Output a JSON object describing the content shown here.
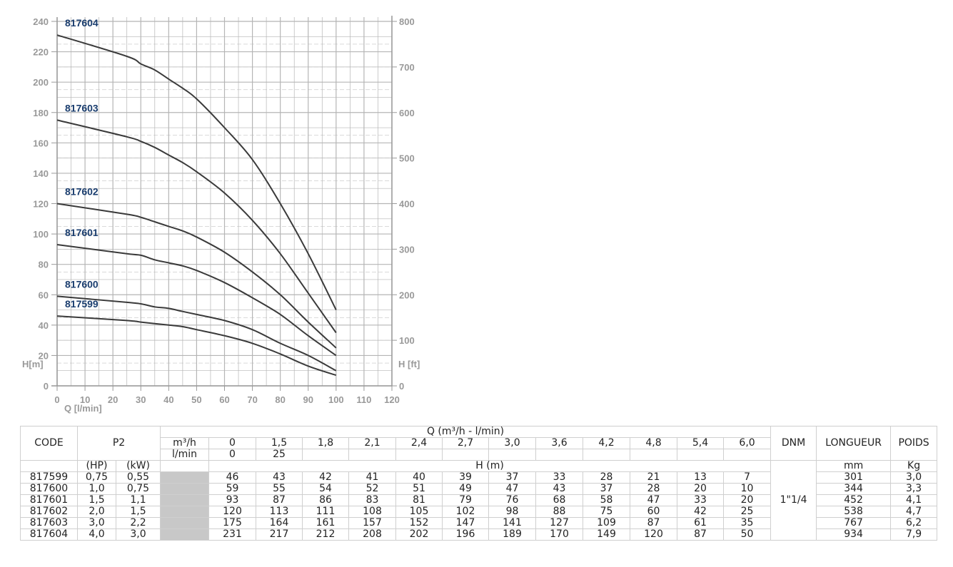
{
  "chart_data": {
    "type": "line",
    "xlabel": "Q [l/min]",
    "ylabel": "H[m]",
    "y2label": "H [ft]",
    "xlim": [
      0,
      120
    ],
    "ylim": [
      0,
      240
    ],
    "y2lim": [
      0,
      800
    ],
    "xticks": [
      "0",
      "10",
      "20",
      "30",
      "40",
      "50",
      "60",
      "70",
      "80",
      "90",
      "100",
      "110",
      "120"
    ],
    "yticks": [
      "0",
      "20",
      "40",
      "60",
      "80",
      "100",
      "120",
      "140",
      "160",
      "180",
      "200",
      "220",
      "240"
    ],
    "y2ticks": [
      "0",
      "100",
      "200",
      "300",
      "400",
      "500",
      "600",
      "700",
      "800"
    ],
    "grid": true,
    "x": [
      0,
      25,
      30,
      35,
      40,
      45,
      50,
      60,
      70,
      80,
      90,
      100
    ],
    "series": [
      {
        "name": "817599",
        "values": [
          46,
          43,
          42,
          41,
          40,
          39,
          37,
          33,
          28,
          21,
          13,
          7
        ]
      },
      {
        "name": "817600",
        "values": [
          59,
          55,
          54,
          52,
          51,
          49,
          47,
          43,
          37,
          28,
          20,
          10
        ]
      },
      {
        "name": "817601",
        "values": [
          93,
          87,
          86,
          83,
          81,
          79,
          76,
          68,
          58,
          47,
          33,
          20
        ]
      },
      {
        "name": "817602",
        "values": [
          120,
          113,
          111,
          108,
          105,
          102,
          98,
          88,
          75,
          60,
          42,
          25
        ]
      },
      {
        "name": "817603",
        "values": [
          175,
          164,
          161,
          157,
          152,
          147,
          141,
          127,
          109,
          87,
          61,
          35
        ]
      },
      {
        "name": "817604",
        "values": [
          231,
          217,
          212,
          208,
          202,
          196,
          189,
          170,
          149,
          120,
          87,
          50
        ]
      }
    ],
    "colors": {
      "curve": "#3a3a3a",
      "label": "#1a3d6e",
      "grid": "#b5b5b5",
      "axis": "#999999"
    }
  },
  "table": {
    "code_header": "CODE",
    "p2_header": "P2",
    "q_header": "Q (m³/h - l/min)",
    "unit_m3h": "m³/h",
    "unit_lmin": "l/min",
    "m3h": [
      "0",
      "1,5",
      "1,8",
      "2,1",
      "2,4",
      "2,7",
      "3,0",
      "3,6",
      "4,2",
      "4,8",
      "5,4",
      "6,0"
    ],
    "lmin": [
      "0",
      "25",
      "",
      "",
      "",
      "",
      "",
      "",
      "",
      "",
      "",
      ""
    ],
    "hp_header": "(HP)",
    "kw_header": "(kW)",
    "h_header": "H (m)",
    "dnm_header": "DNM",
    "dnm_value": "1\"1/4",
    "longueur_header": "LONGUEUR",
    "longueur_unit": "mm",
    "poids_header": "POIDS",
    "poids_unit": "Kg",
    "rows": [
      {
        "code": "817599",
        "hp": "0,75",
        "kw": "0,55",
        "h": [
          "46",
          "43",
          "42",
          "41",
          "40",
          "39",
          "37",
          "33",
          "28",
          "21",
          "13",
          "7"
        ],
        "longueur": "301",
        "poids": "3,0"
      },
      {
        "code": "817600",
        "hp": "1,0",
        "kw": "0,75",
        "h": [
          "59",
          "55",
          "54",
          "52",
          "51",
          "49",
          "47",
          "43",
          "37",
          "28",
          "20",
          "10"
        ],
        "longueur": "344",
        "poids": "3,3"
      },
      {
        "code": "817601",
        "hp": "1,5",
        "kw": "1,1",
        "h": [
          "93",
          "87",
          "86",
          "83",
          "81",
          "79",
          "76",
          "68",
          "58",
          "47",
          "33",
          "20"
        ],
        "longueur": "452",
        "poids": "4,1"
      },
      {
        "code": "817602",
        "hp": "2,0",
        "kw": "1,5",
        "h": [
          "120",
          "113",
          "111",
          "108",
          "105",
          "102",
          "98",
          "88",
          "75",
          "60",
          "42",
          "25"
        ],
        "longueur": "538",
        "poids": "4,7"
      },
      {
        "code": "817603",
        "hp": "3,0",
        "kw": "2,2",
        "h": [
          "175",
          "164",
          "161",
          "157",
          "152",
          "147",
          "141",
          "127",
          "109",
          "87",
          "61",
          "35"
        ],
        "longueur": "767",
        "poids": "6,2"
      },
      {
        "code": "817604",
        "hp": "4,0",
        "kw": "3,0",
        "h": [
          "231",
          "217",
          "212",
          "208",
          "202",
          "196",
          "189",
          "170",
          "149",
          "120",
          "87",
          "50"
        ],
        "longueur": "934",
        "poids": "7,9"
      }
    ]
  }
}
